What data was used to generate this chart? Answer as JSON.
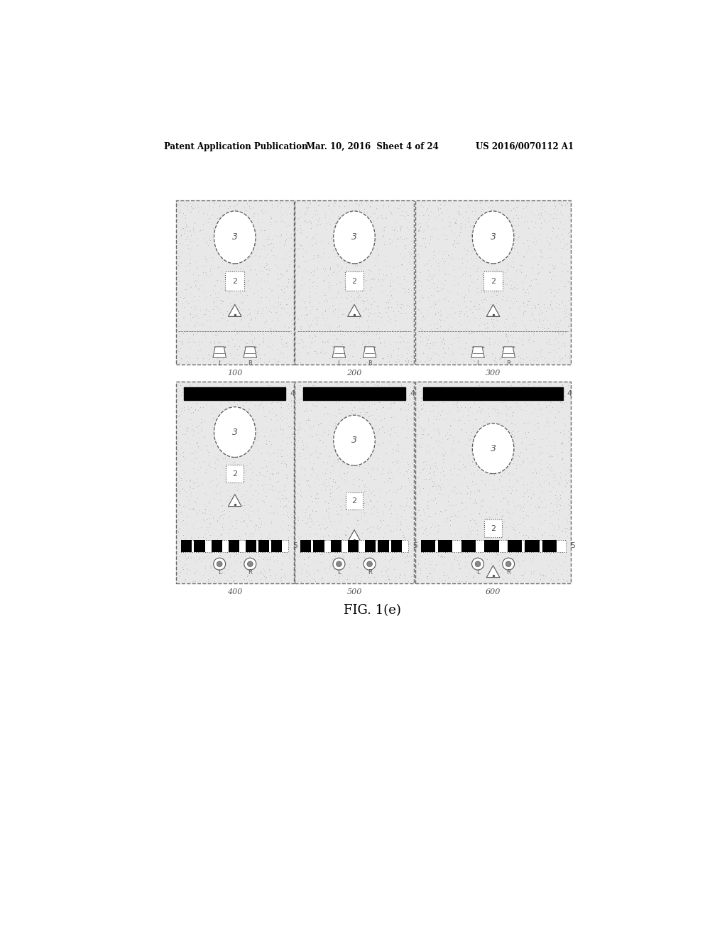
{
  "header_left": "Patent Application Publication",
  "header_mid": "Mar. 10, 2016  Sheet 4 of 24",
  "header_right": "US 2016/0070112 A1",
  "figure_caption": "FIG. 1(e)",
  "panel_labels_top": [
    "100",
    "200",
    "300"
  ],
  "panel_labels_bot": [
    "400",
    "500",
    "600"
  ],
  "bg_color": "#ffffff",
  "panel_bg": "#e8e8e8",
  "dash_color": "#666666",
  "element_color": "#555555"
}
